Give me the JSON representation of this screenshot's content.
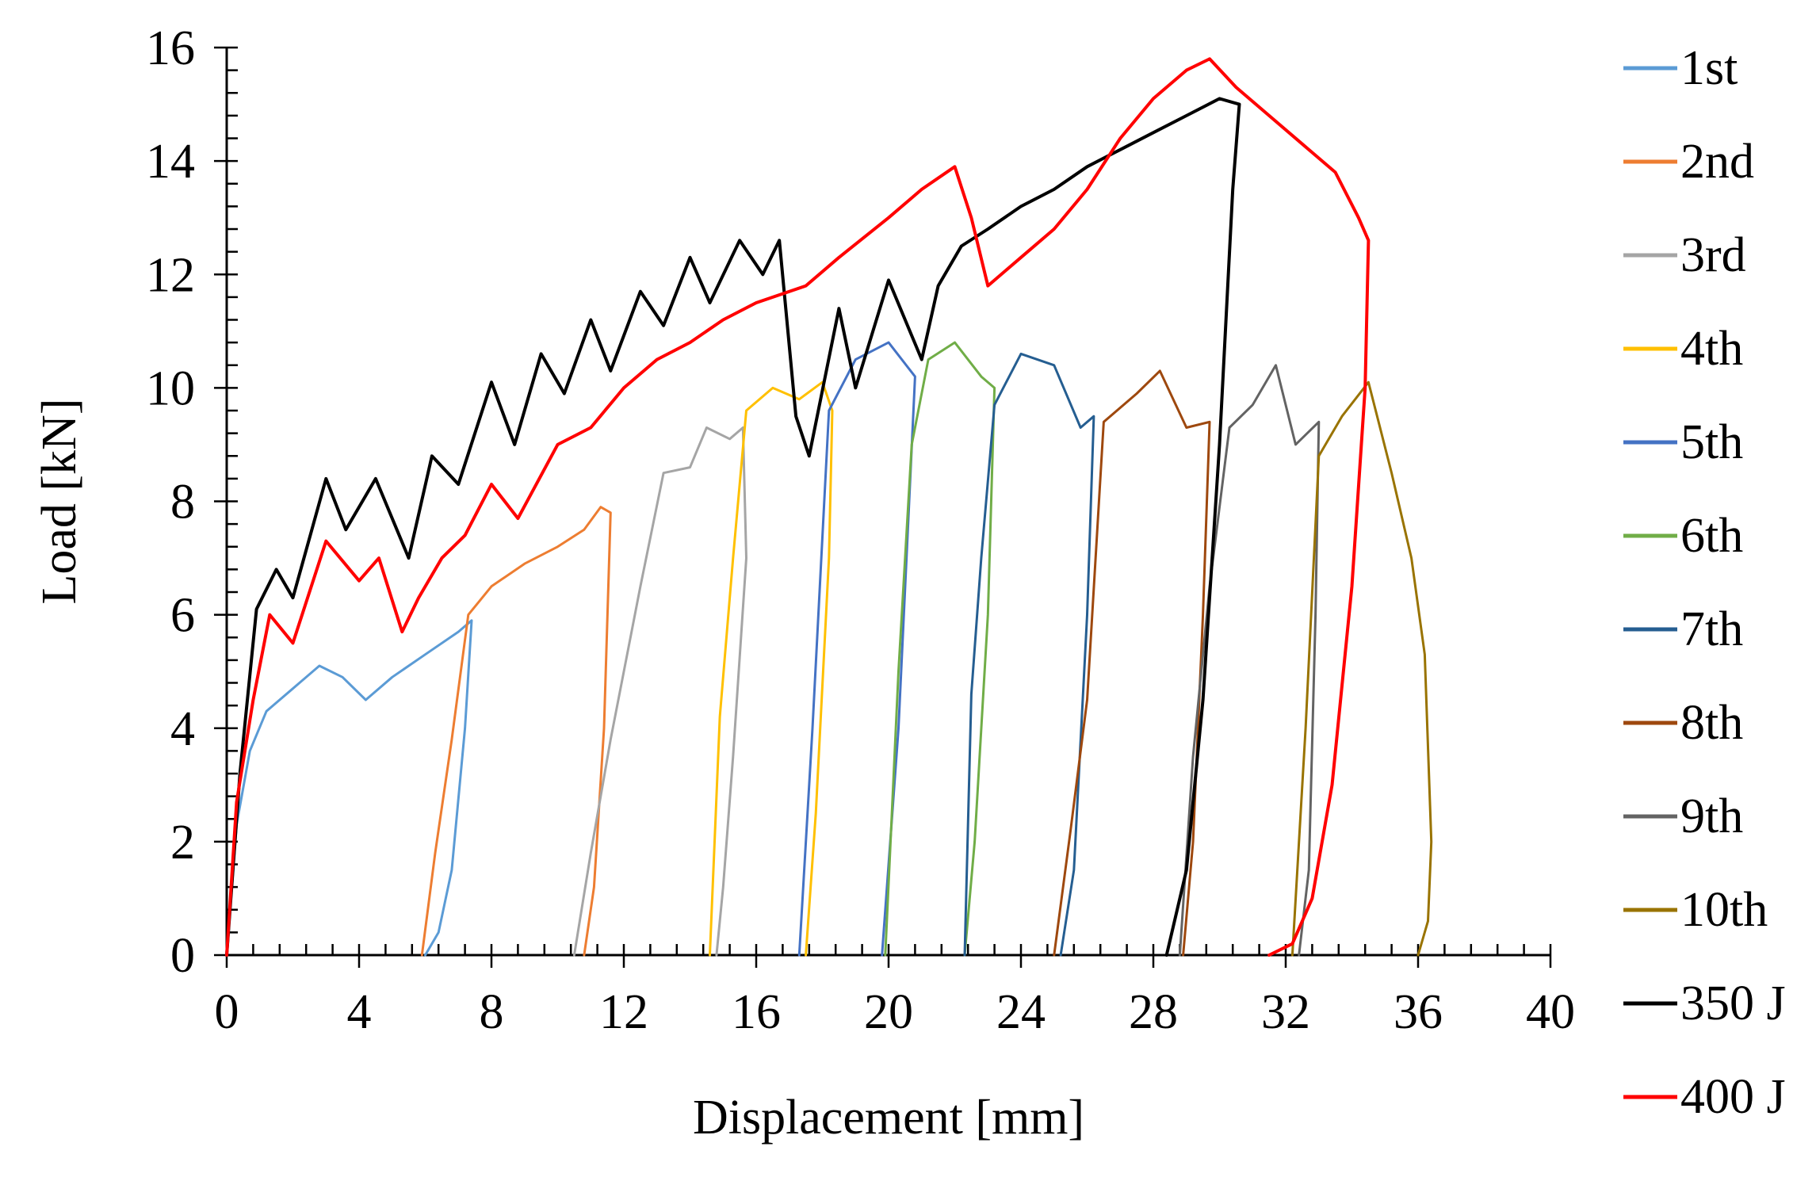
{
  "chart_data": {
    "type": "line",
    "title": "",
    "xlabel": "Displacement [mm]",
    "ylabel": "Load [kN]",
    "xlim": [
      0,
      40
    ],
    "ylim": [
      0,
      16
    ],
    "xticks": [
      0,
      4,
      8,
      12,
      16,
      20,
      24,
      28,
      32,
      36,
      40
    ],
    "yticks": [
      0,
      2,
      4,
      6,
      8,
      10,
      12,
      14,
      16
    ],
    "grid": false,
    "legend_position": "right",
    "series": [
      {
        "name": "1st",
        "color": "#5B9BD5",
        "x": [
          0,
          0.3,
          0.7,
          1.2,
          2.0,
          2.8,
          3.5,
          4.2,
          5.0,
          6.0,
          7.0,
          7.4,
          7.2,
          6.8,
          6.4,
          6.0
        ],
        "y": [
          0,
          2.3,
          3.6,
          4.3,
          4.7,
          5.1,
          4.9,
          4.5,
          4.9,
          5.3,
          5.7,
          5.9,
          4.0,
          1.5,
          0.4,
          0
        ]
      },
      {
        "name": "2nd",
        "color": "#ED7D31",
        "x": [
          5.9,
          6.3,
          6.8,
          7.3,
          8.0,
          9.0,
          10.0,
          10.8,
          11.3,
          11.6,
          11.4,
          11.1,
          10.8
        ],
        "y": [
          0,
          1.8,
          3.8,
          6.0,
          6.5,
          6.9,
          7.2,
          7.5,
          7.9,
          7.8,
          4.0,
          1.2,
          0
        ]
      },
      {
        "name": "3rd",
        "color": "#A5A5A5",
        "x": [
          10.5,
          11.0,
          11.6,
          12.5,
          13.2,
          14.0,
          14.5,
          15.2,
          15.6,
          15.7,
          15.3,
          15.0,
          14.8
        ],
        "y": [
          0,
          1.8,
          3.8,
          6.5,
          8.5,
          8.6,
          9.3,
          9.1,
          9.3,
          7.0,
          3.5,
          1.2,
          0
        ]
      },
      {
        "name": "4th",
        "color": "#FFC000",
        "x": [
          14.6,
          14.9,
          15.3,
          15.7,
          16.5,
          17.3,
          18.0,
          18.3,
          18.2,
          17.8,
          17.5
        ],
        "y": [
          0,
          4.2,
          7.0,
          9.6,
          10.0,
          9.8,
          10.1,
          9.6,
          7.0,
          2.5,
          0
        ]
      },
      {
        "name": "5th",
        "color": "#4472C4",
        "x": [
          17.3,
          17.7,
          18.2,
          19.0,
          20.0,
          20.8,
          20.3,
          19.8
        ],
        "y": [
          0,
          4.0,
          9.6,
          10.5,
          10.8,
          10.2,
          4.0,
          0
        ]
      },
      {
        "name": "6th",
        "color": "#70AD47",
        "x": [
          19.9,
          20.3,
          20.7,
          21.2,
          22.0,
          22.8,
          23.2,
          23.0,
          22.6,
          22.3
        ],
        "y": [
          0,
          5.0,
          9.0,
          10.5,
          10.8,
          10.2,
          10.0,
          6.0,
          2.0,
          0
        ]
      },
      {
        "name": "7th",
        "color": "#255E91",
        "x": [
          22.3,
          22.5,
          22.8,
          23.2,
          24.0,
          25.0,
          25.8,
          26.2,
          26.0,
          25.6,
          25.2
        ],
        "y": [
          0,
          4.6,
          7.0,
          9.7,
          10.6,
          10.4,
          9.3,
          9.5,
          6.0,
          1.5,
          0
        ]
      },
      {
        "name": "8th",
        "color": "#9E480E",
        "x": [
          25.0,
          25.5,
          26.0,
          26.5,
          27.5,
          28.2,
          29.0,
          29.7,
          29.5,
          29.2,
          28.9
        ],
        "y": [
          0,
          2.2,
          4.5,
          9.4,
          9.9,
          10.3,
          9.3,
          9.4,
          6.0,
          2.0,
          0
        ]
      },
      {
        "name": "9th",
        "color": "#636363",
        "x": [
          28.8,
          29.2,
          29.7,
          30.3,
          31.0,
          31.7,
          32.3,
          33.0,
          32.9,
          32.7,
          32.4
        ],
        "y": [
          0,
          3.5,
          6.5,
          9.3,
          9.7,
          10.4,
          9.0,
          9.4,
          6.0,
          1.5,
          0
        ]
      },
      {
        "name": "10th",
        "color": "#997300",
        "x": [
          32.2,
          32.6,
          33.0,
          33.7,
          34.5,
          35.2,
          35.8,
          36.2,
          36.4,
          36.3,
          36.0
        ],
        "y": [
          0,
          4.0,
          8.8,
          9.5,
          10.1,
          8.5,
          7.0,
          5.3,
          2.0,
          0.6,
          0
        ]
      },
      {
        "name": "350 J",
        "color": "#000000",
        "x": [
          0,
          0.4,
          0.9,
          1.5,
          2.0,
          3.0,
          3.6,
          4.5,
          5.5,
          6.2,
          7.0,
          8.0,
          8.7,
          9.5,
          10.2,
          11.0,
          11.6,
          12.5,
          13.2,
          14.0,
          14.6,
          15.5,
          16.2,
          16.7,
          17.2,
          17.6,
          18.5,
          19.0,
          20.0,
          21.0,
          21.5,
          22.2,
          23.0,
          24.0,
          25.0,
          26.0,
          27.0,
          28.0,
          29.0,
          30.0,
          30.6,
          30.4,
          30.0,
          29.5,
          29.0,
          28.4
        ],
        "y": [
          0,
          3.2,
          6.1,
          6.8,
          6.3,
          8.4,
          7.5,
          8.4,
          7.0,
          8.8,
          8.3,
          10.1,
          9.0,
          10.6,
          9.9,
          11.2,
          10.3,
          11.7,
          11.1,
          12.3,
          11.5,
          12.6,
          12.0,
          12.6,
          9.5,
          8.8,
          11.4,
          10.0,
          11.9,
          10.5,
          11.8,
          12.5,
          12.8,
          13.2,
          13.5,
          13.9,
          14.2,
          14.5,
          14.8,
          15.1,
          15.0,
          13.5,
          9.0,
          4.5,
          1.5,
          0
        ]
      },
      {
        "name": "400 J",
        "color": "#FF0000",
        "x": [
          0,
          0.3,
          0.8,
          1.3,
          2.0,
          3.0,
          4.0,
          4.6,
          5.3,
          5.8,
          6.5,
          7.2,
          8.0,
          8.8,
          10.0,
          11.0,
          12.0,
          13.0,
          14.0,
          15.0,
          16.0,
          17.5,
          18.5,
          20.0,
          21.0,
          22.0,
          22.5,
          23.0,
          24.0,
          25.0,
          26.0,
          27.0,
          28.0,
          29.0,
          29.7,
          30.5,
          31.5,
          32.5,
          33.5,
          34.2,
          34.5,
          34.4,
          34.0,
          33.4,
          32.8,
          32.2,
          31.5
        ],
        "y": [
          0,
          2.7,
          4.5,
          6.0,
          5.5,
          7.3,
          6.6,
          7.0,
          5.7,
          6.3,
          7.0,
          7.4,
          8.3,
          7.7,
          9.0,
          9.3,
          10.0,
          10.5,
          10.8,
          11.2,
          11.5,
          11.8,
          12.3,
          13.0,
          13.5,
          13.9,
          13.0,
          11.8,
          12.3,
          12.8,
          13.5,
          14.4,
          15.1,
          15.6,
          15.8,
          15.3,
          14.8,
          14.3,
          13.8,
          13.0,
          12.6,
          10.0,
          6.5,
          3.0,
          1.0,
          0.2,
          0
        ]
      }
    ]
  }
}
